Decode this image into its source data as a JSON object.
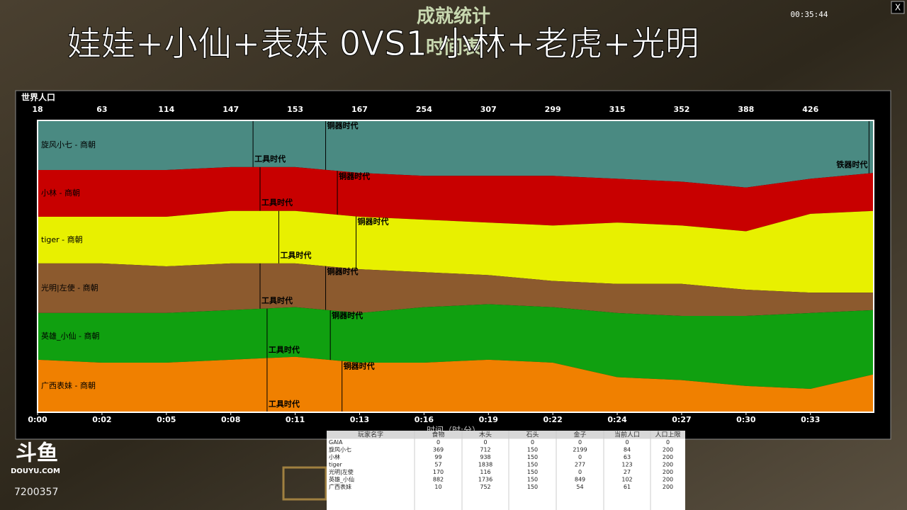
{
  "overlay_title": "娃娃+小仙+表妹 0VS1 小林+老虎+光明",
  "window": {
    "title": "成就统计",
    "subtitle": "时间表",
    "clock": "00:35:44",
    "close": "X"
  },
  "chart_data": {
    "type": "stacked_area",
    "title": "世界人口",
    "x_label": "时间（时:分）",
    "x": [
      0,
      2.75,
      5.5,
      8.25,
      11,
      13.75,
      16.5,
      19.25,
      22,
      24.75,
      27.5,
      30.25,
      33,
      35.7
    ],
    "xlim": [
      0,
      35.7
    ],
    "ylim": [
      0,
      100
    ],
    "xticks": [
      {
        "value": 0,
        "label": "0:00"
      },
      {
        "value": 2.75,
        "label": "0:02"
      },
      {
        "value": 5.5,
        "label": "0:05"
      },
      {
        "value": 8.25,
        "label": "0:08"
      },
      {
        "value": 11,
        "label": "0:11"
      },
      {
        "value": 13.75,
        "label": "0:13"
      },
      {
        "value": 16.5,
        "label": "0:16"
      },
      {
        "value": 19.25,
        "label": "0:19"
      },
      {
        "value": 22,
        "label": "0:22"
      },
      {
        "value": 24.75,
        "label": "0:24"
      },
      {
        "value": 27.5,
        "label": "0:27"
      },
      {
        "value": 30.25,
        "label": "0:30"
      },
      {
        "value": 33,
        "label": "0:33"
      }
    ],
    "population": [
      18,
      63,
      114,
      147,
      153,
      167,
      254,
      307,
      299,
      315,
      352,
      388,
      426
    ],
    "series": [
      {
        "name": "旋风小七 - 商朝",
        "color": "#4a8a82",
        "values": [
          17,
          17,
          17,
          16,
          16,
          18,
          19,
          19,
          19,
          20,
          21,
          23,
          20,
          18
        ],
        "events": [
          {
            "label": "工具时代",
            "x": 9.2
          },
          {
            "label": "铜器时代",
            "x": 12.3
          },
          {
            "label": "铁器时代",
            "x": 35.5
          }
        ]
      },
      {
        "name": "小林 - 商朝",
        "color": "#c80000",
        "values": [
          16,
          16,
          16,
          15,
          15,
          15,
          15,
          16,
          17,
          15,
          15,
          15,
          12,
          13
        ],
        "events": [
          {
            "label": "工具时代",
            "x": 9.5
          },
          {
            "label": "铜器时代",
            "x": 12.8
          }
        ]
      },
      {
        "name": "tiger - 商朝",
        "color": "#e8f000",
        "values": [
          16,
          16,
          17,
          18,
          18,
          18,
          18,
          18,
          19,
          21,
          20,
          20,
          27,
          28
        ],
        "events": [
          {
            "label": "工具时代",
            "x": 10.3
          },
          {
            "label": "铜器时代",
            "x": 13.6
          }
        ]
      },
      {
        "name": "光明|左使 - 商朝",
        "color": "#8c5a2e",
        "values": [
          17,
          17,
          16,
          16,
          15,
          15,
          12,
          10,
          9,
          10,
          11,
          9,
          7,
          6
        ],
        "events": [
          {
            "label": "工具时代",
            "x": 9.5
          },
          {
            "label": "铜器时代",
            "x": 12.3
          }
        ]
      },
      {
        "name": "英雄_小仙 - 商朝",
        "color": "#10a010",
        "values": [
          16,
          17,
          17,
          17,
          17,
          17,
          19,
          19,
          19,
          22,
          22,
          24,
          26,
          22
        ],
        "events": [
          {
            "label": "工具时代",
            "x": 9.8
          },
          {
            "label": "铜器时代",
            "x": 12.5
          }
        ]
      },
      {
        "name": "广西表妹 - 商朝",
        "color": "#f08000",
        "values": [
          18,
          17,
          17,
          18,
          19,
          17,
          17,
          18,
          17,
          12,
          11,
          9,
          8,
          13
        ],
        "events": [
          {
            "label": "工具时代",
            "x": 9.8
          },
          {
            "label": "铜器时代",
            "x": 13.0
          }
        ]
      }
    ]
  },
  "table": {
    "header": [
      "玩家名字",
      "食物",
      "木头",
      "石头",
      "金子",
      "当前人口",
      "人口上限"
    ],
    "rows": [
      [
        "GAIA",
        0,
        0,
        0,
        0,
        0,
        0
      ],
      [
        "旋风小七",
        369,
        712,
        150,
        2199,
        84,
        200
      ],
      [
        "小林",
        99,
        938,
        150,
        0,
        63,
        200
      ],
      [
        "tiger",
        57,
        1838,
        150,
        277,
        123,
        200
      ],
      [
        "光明|左使",
        170,
        116,
        150,
        0,
        27,
        200
      ],
      [
        "英雄_小仙",
        882,
        1736,
        150,
        849,
        102,
        200
      ],
      [
        "广西表妹",
        10,
        752,
        150,
        54,
        61,
        200
      ]
    ]
  },
  "watermark": {
    "logo": "斗鱼",
    "site": "DOUYU.COM",
    "room": "7200357"
  }
}
